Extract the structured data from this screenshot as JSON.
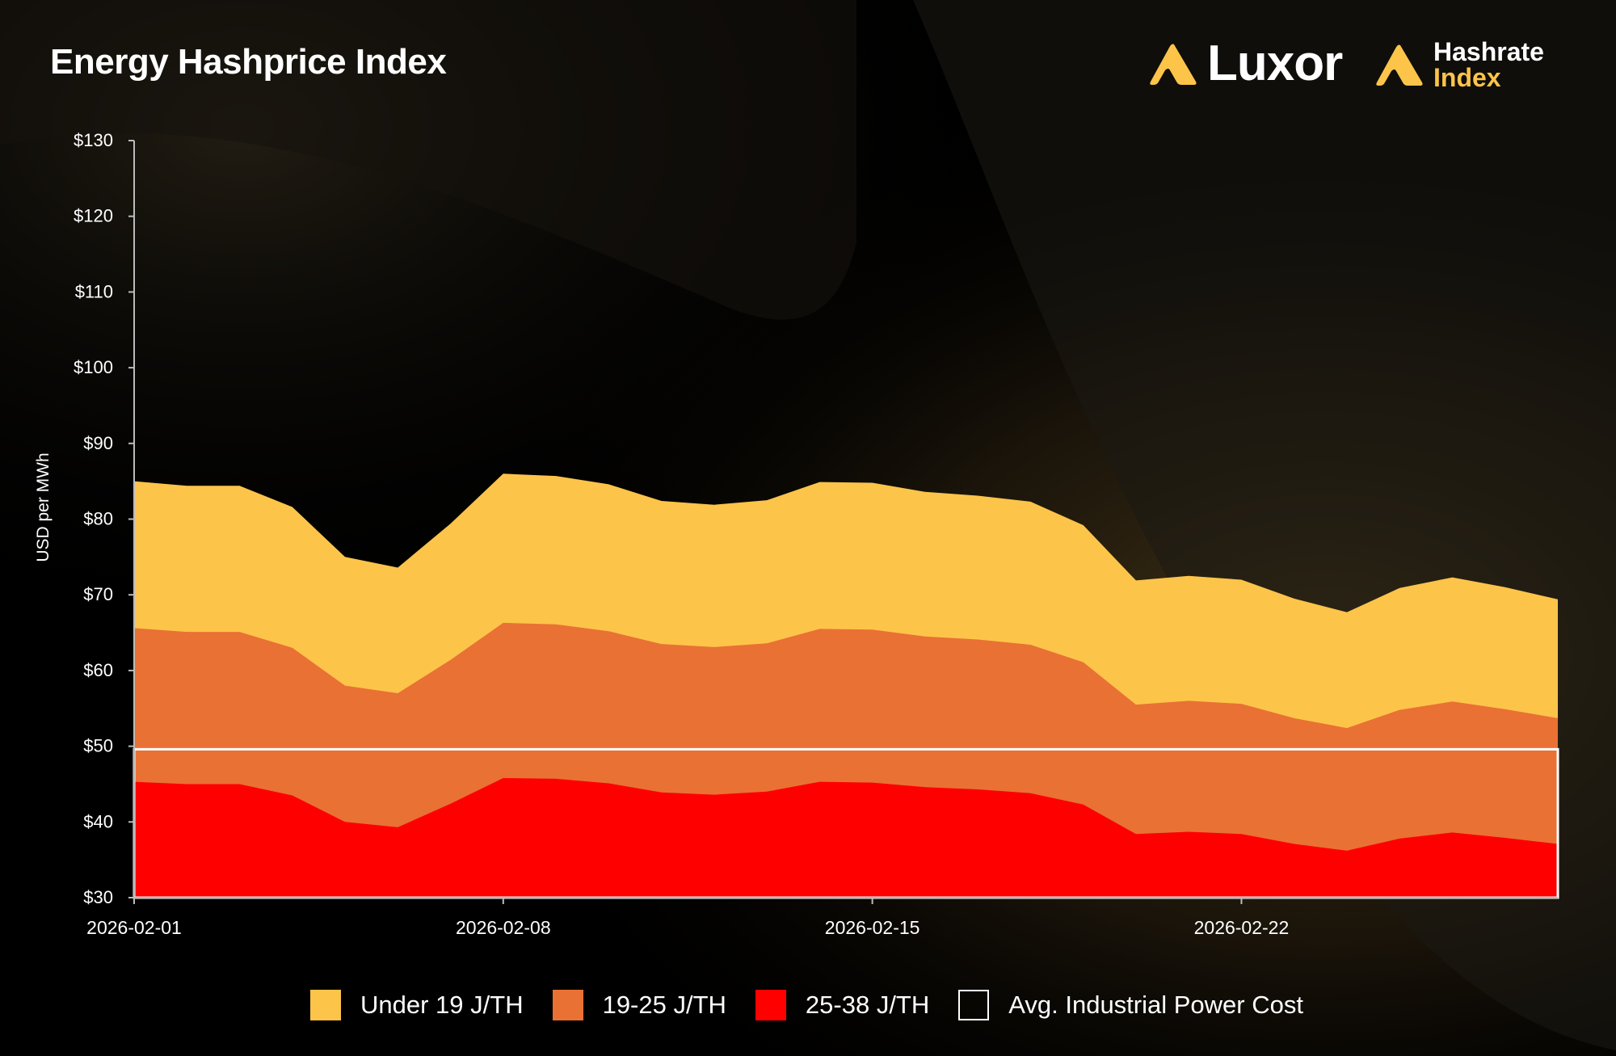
{
  "header": {
    "title": "Energy Hashprice Index",
    "brand_luxor": "Luxor",
    "brand_hashrate": "Hashrate",
    "brand_index": "Index"
  },
  "colors": {
    "under19": "#fdc44a",
    "j19_25": "#e97134",
    "j25_38": "#ff0000",
    "power_cost": "#ffffff",
    "background": "#000000"
  },
  "chart_data": {
    "type": "area",
    "title": "Energy Hashprice Index",
    "xlabel": "",
    "ylabel": "USD per MWh",
    "ylim": [
      30,
      130
    ],
    "yticks": [
      "$30",
      "$40",
      "$50",
      "$60",
      "$70",
      "$80",
      "$90",
      "$100",
      "$110",
      "$120",
      "$130"
    ],
    "xtick_labels": [
      "2026-02-01",
      "2026-02-08",
      "2026-02-15",
      "2026-02-22"
    ],
    "x": [
      "2026-02-01",
      "2026-02-02",
      "2026-02-03",
      "2026-02-04",
      "2026-02-05",
      "2026-02-06",
      "2026-02-07",
      "2026-02-08",
      "2026-02-09",
      "2026-02-10",
      "2026-02-11",
      "2026-02-12",
      "2026-02-13",
      "2026-02-14",
      "2026-02-15",
      "2026-02-16",
      "2026-02-17",
      "2026-02-18",
      "2026-02-19",
      "2026-02-20",
      "2026-02-21",
      "2026-02-22",
      "2026-02-23",
      "2026-02-24",
      "2026-02-25",
      "2026-02-26",
      "2026-02-27",
      "2026-02-28"
    ],
    "series": [
      {
        "name": "Under 19 J/TH",
        "values": [
          85.0,
          84.4,
          84.4,
          81.6,
          75.0,
          73.6,
          79.4,
          86.0,
          85.7,
          84.6,
          82.4,
          81.9,
          82.5,
          84.9,
          84.8,
          83.6,
          83.1,
          82.3,
          79.2,
          71.9,
          72.5,
          72.0,
          69.5,
          67.7,
          70.9,
          72.3,
          71.0,
          69.4
        ]
      },
      {
        "name": "19-25 J/TH",
        "values": [
          65.6,
          65.1,
          65.1,
          63.0,
          58.0,
          57.0,
          61.4,
          66.3,
          66.1,
          65.2,
          63.5,
          63.1,
          63.6,
          65.5,
          65.4,
          64.5,
          64.1,
          63.4,
          61.1,
          55.5,
          56.0,
          55.6,
          53.7,
          52.4,
          54.8,
          55.9,
          54.9,
          53.7
        ]
      },
      {
        "name": "25-38 J/TH",
        "values": [
          45.3,
          45.0,
          45.0,
          43.5,
          40.0,
          39.3,
          42.4,
          45.8,
          45.7,
          45.1,
          43.9,
          43.6,
          44.0,
          45.3,
          45.2,
          44.6,
          44.3,
          43.8,
          42.3,
          38.4,
          38.7,
          38.4,
          37.1,
          36.2,
          37.8,
          38.6,
          37.9,
          37.1
        ]
      }
    ],
    "power_cost": {
      "name": "Avg. Industrial Power Cost",
      "value": 49.6
    },
    "legend": [
      "Under 19 J/TH",
      "19-25 J/TH",
      "25-38 J/TH",
      "Avg. Industrial Power Cost"
    ],
    "legend_position": "bottom",
    "grid": false
  }
}
